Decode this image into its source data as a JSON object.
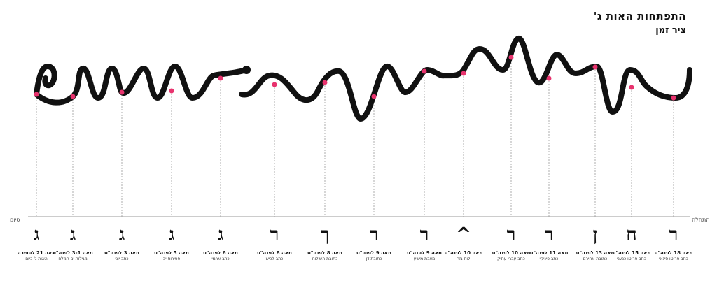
{
  "title": "התפתחות האות ג'",
  "subtitle": "ציר זמן",
  "axis": {
    "left_label": "סיום",
    "right_label": "התחלה"
  },
  "colors": {
    "stroke": "#111111",
    "dot": "#e8336e",
    "guide": "#9a9a9a"
  },
  "stages": [
    {
      "glyph": "ג",
      "date": "מאה 21 לספירה",
      "source": "האות ג' כיום"
    },
    {
      "glyph": "ג",
      "date": "מאה 3-1 לפנה\"ס",
      "source": "מגילות ים המלח"
    },
    {
      "glyph": "ג",
      "date": "מאה 3 לפנה\"ס",
      "source": "כתב יוני"
    },
    {
      "glyph": "ג",
      "date": "מאה 5 לפנה\"ס",
      "source": "פפירוס יב"
    },
    {
      "glyph": "ג",
      "date": "מאה 6 לפנה\"ס",
      "source": "כתב ארמי"
    },
    {
      "glyph": "ר",
      "date": "מאה 8 לפנה\"ס",
      "source": "כתב לכיש"
    },
    {
      "glyph": "ך",
      "date": "מאה 8 לפנה\"ס",
      "source": "כתובת השילוח"
    },
    {
      "glyph": "ר",
      "date": "מאה 9 לפנה\"ס",
      "source": "כתובת דן"
    },
    {
      "glyph": "ר",
      "date": "מאה 9 לפנה\"ס",
      "source": "מצבת מישע"
    },
    {
      "glyph": "^",
      "date": "מאה 10 לפנה\"ס",
      "source": "לוח גזר"
    },
    {
      "glyph": "ר",
      "date": "מאה 10 לפנה\"ס",
      "source": "כתב עברי עתיק"
    },
    {
      "glyph": "ר",
      "date": "מאה 11 לפנה\"ס",
      "source": "כתב פיניקי"
    },
    {
      "glyph": "ן",
      "date": "מאה 13 לפנה\"ס",
      "source": "כתובת אחירם"
    },
    {
      "glyph": "ח",
      "date": "מאה 15 לפנה\"ס",
      "source": "כתב פרוטו כנעני"
    },
    {
      "glyph": "ר",
      "date": "מאה 18 לפנה\"ס",
      "source": "כתב פרוטו סינאי"
    }
  ]
}
